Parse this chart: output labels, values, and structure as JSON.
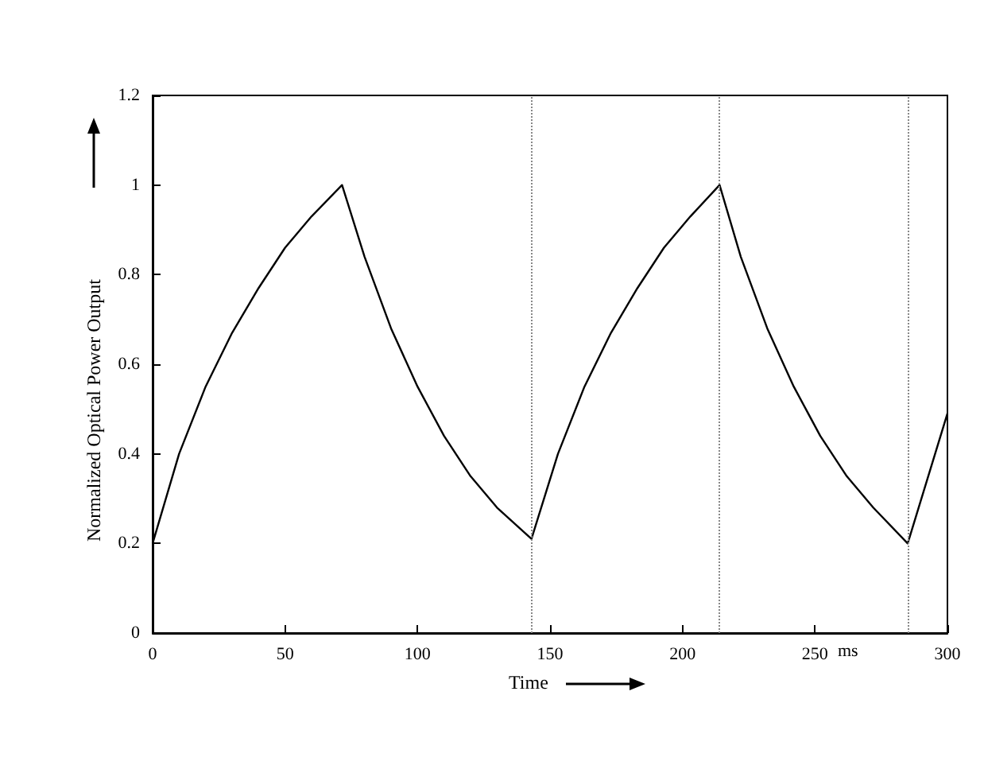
{
  "chart_data": {
    "type": "line",
    "xlabel": "Time",
    "ylabel": "Normalized Optical Power Output",
    "annotations": [
      "ms"
    ],
    "series": [
      {
        "color": "#000000",
        "x": [
          0,
          10,
          20,
          30,
          40,
          50,
          60,
          71.5,
          80,
          90,
          100,
          110,
          120,
          130,
          143,
          153,
          163,
          173,
          183,
          193,
          203,
          214,
          222,
          232,
          242,
          252,
          262,
          272,
          285,
          300
        ],
        "values": [
          0.2,
          0.4,
          0.55,
          0.67,
          0.77,
          0.86,
          0.93,
          1,
          0.84,
          0.68,
          0.55,
          0.44,
          0.35,
          0.28,
          0.21,
          0.4,
          0.55,
          0.67,
          0.77,
          0.86,
          0.93,
          1,
          0.84,
          0.68,
          0.55,
          0.44,
          0.35,
          0.28,
          0.2,
          0.49
        ]
      }
    ],
    "xlim": [
      0,
      300
    ],
    "xticks": [
      0,
      50,
      100,
      150,
      200,
      250,
      300
    ],
    "ylim": [
      0,
      1.2
    ],
    "yticks": [
      0,
      0.2,
      0.4,
      0.6,
      0.8,
      1,
      1.2
    ],
    "ref_lines": [
      {
        "axis": "x",
        "value": 143,
        "line_style": "dotted",
        "color": "#888888"
      },
      {
        "axis": "x",
        "value": 214,
        "line_style": "dotted",
        "color": "#888888"
      },
      {
        "axis": "x",
        "value": 285,
        "line_style": "dotted",
        "color": "#888888"
      }
    ],
    "grid": false,
    "marker": "none",
    "line_style": "solid"
  }
}
